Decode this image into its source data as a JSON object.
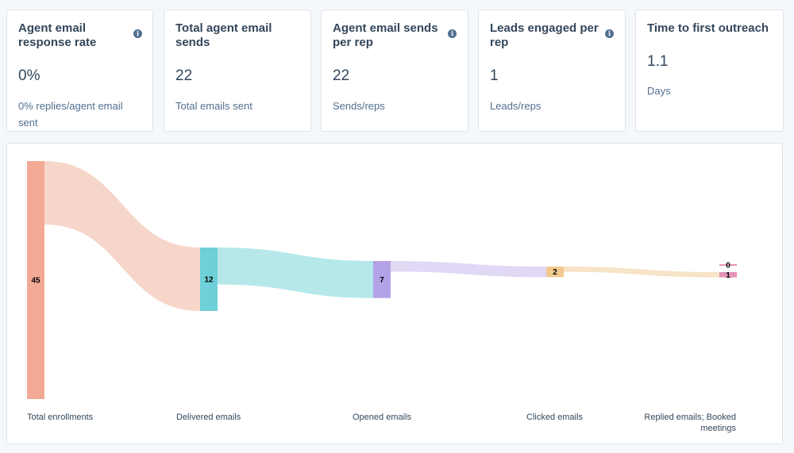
{
  "cards": [
    {
      "title": "Agent email response rate",
      "has_info": true,
      "value": "0%",
      "caption": "0% replies/agent email sent"
    },
    {
      "title": "Total agent email sends",
      "has_info": false,
      "value": "22",
      "caption": "Total emails sent"
    },
    {
      "title": "Agent email sends per rep",
      "has_info": true,
      "value": "22",
      "caption": "Sends/reps"
    },
    {
      "title": "Leads engaged per rep",
      "has_info": true,
      "value": "1",
      "caption": "Leads/reps"
    },
    {
      "title": "Time to first outreach",
      "has_info": false,
      "value": "1.1",
      "caption": "Days"
    }
  ],
  "info_icon": "info-icon",
  "chart_data": {
    "type": "sankey",
    "stages": [
      "Total enrollments",
      "Delivered emails",
      "Opened emails",
      "Clicked emails",
      "Replied emails; Booked meetings"
    ],
    "nodes": [
      {
        "stage": 0,
        "value": 45,
        "label": "45",
        "color": "#f2aa96"
      },
      {
        "stage": 1,
        "value": 12,
        "label": "12",
        "color": "#6ed0d8"
      },
      {
        "stage": 2,
        "value": 7,
        "label": "7",
        "color": "#b4a2e6"
      },
      {
        "stage": 3,
        "value": 2,
        "label": "2",
        "color": "#f2c98e"
      },
      {
        "stage": 4,
        "value": 1,
        "label": "1",
        "color": "#e493b6"
      },
      {
        "stage": 4,
        "value": 0,
        "label": "0",
        "color": "#e493b6"
      }
    ],
    "links": [
      {
        "source": 0,
        "target": 1,
        "value": 12,
        "color": "#f7d6ca"
      },
      {
        "source": 1,
        "target": 2,
        "value": 7,
        "color": "#b6e8ea"
      },
      {
        "source": 2,
        "target": 3,
        "value": 2,
        "color": "#e0d8f4"
      },
      {
        "source": 3,
        "target": 4,
        "value": 1,
        "color": "#f7e3c6"
      }
    ]
  }
}
